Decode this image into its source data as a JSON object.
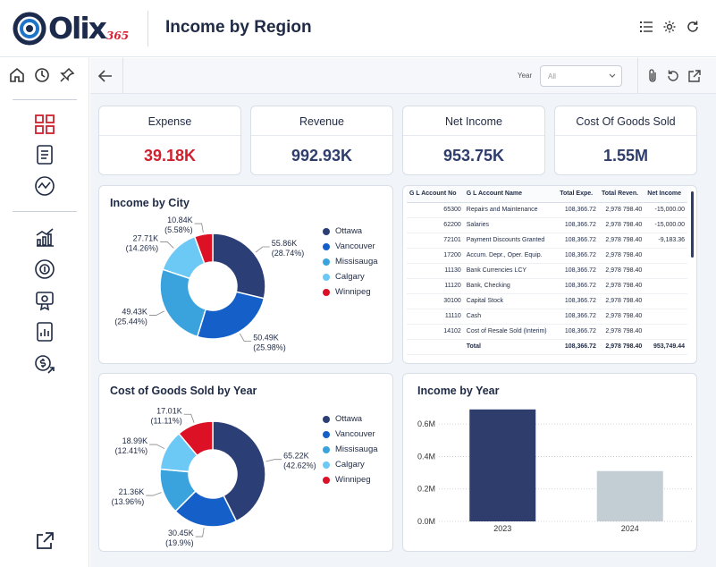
{
  "header": {
    "logo_text": "Olix",
    "logo_sub": "365",
    "title": "Income by Region"
  },
  "toolbar": {
    "year_label": "Year",
    "year_value": "All"
  },
  "kpis": [
    {
      "label": "Expense",
      "value": "39.18K",
      "color": "#d0202e"
    },
    {
      "label": "Revenue",
      "value": "992.93K",
      "color": "#2e3d6b"
    },
    {
      "label": "Net Income",
      "value": "953.75K",
      "color": "#2e3d6b"
    },
    {
      "label": "Cost Of Goods Sold",
      "value": "1.55M",
      "color": "#2e3d6b"
    }
  ],
  "legend": [
    {
      "name": "Ottawa",
      "color": "#2b3f76"
    },
    {
      "name": "Vancouver",
      "color": "#1560c8"
    },
    {
      "name": "Missisauga",
      "color": "#3aa3de"
    },
    {
      "name": "Calgary",
      "color": "#6cc8f5"
    },
    {
      "name": "Winnipeg",
      "color": "#dd1125"
    }
  ],
  "chart_data": [
    {
      "type": "pie",
      "title": "Income by City",
      "slices": [
        {
          "name": "Ottawa",
          "value": 55.86,
          "label": "55.86K",
          "pct": "(28.74%)"
        },
        {
          "name": "Vancouver",
          "value": 50.49,
          "label": "50.49K",
          "pct": "(25.98%)"
        },
        {
          "name": "Missisauga",
          "value": 49.43,
          "label": "49.43K",
          "pct": "(25.44%)"
        },
        {
          "name": "Calgary",
          "value": 27.71,
          "label": "27.71K",
          "pct": "(14.26%)"
        },
        {
          "name": "Winnipeg",
          "value": 10.84,
          "label": "10.84K",
          "pct": "(5.58%)"
        }
      ]
    },
    {
      "type": "pie",
      "title": "Cost of Goods Sold by Year",
      "slices": [
        {
          "name": "Ottawa",
          "value": 65.22,
          "label": "65.22K",
          "pct": "(42.62%)"
        },
        {
          "name": "Vancouver",
          "value": 30.45,
          "label": "30.45K",
          "pct": "(19.9%)"
        },
        {
          "name": "Missisauga",
          "value": 21.36,
          "label": "21.36K",
          "pct": "(13.96%)"
        },
        {
          "name": "Calgary",
          "value": 18.99,
          "label": "18.99K",
          "pct": "(12.41%)"
        },
        {
          "name": "Winnipeg",
          "value": 17.01,
          "label": "17.01K",
          "pct": "(11.11%)"
        }
      ]
    },
    {
      "type": "bar",
      "title": "Income by Year",
      "categories": [
        "2023",
        "2024"
      ],
      "values": [
        0.69,
        0.31
      ],
      "colors": [
        "#2e3d6b",
        "#c3cdd4"
      ],
      "ylim": [
        0,
        0.7
      ],
      "yticks": [
        "0.0M",
        "0.2M",
        "0.4M",
        "0.6M"
      ],
      "ytick_values": [
        0,
        0.2,
        0.4,
        0.6
      ]
    }
  ],
  "gl_table": {
    "columns": [
      "G L Account No",
      "G L Account Name",
      "Total Expe.",
      "Total Reven.",
      "Net Income"
    ],
    "rows": [
      [
        "65300",
        "Repairs and Maintenance",
        "108,366.72",
        "2,978 798.40",
        "-15,000.00"
      ],
      [
        "62200",
        "Salaries",
        "108,366.72",
        "2,978 798.40",
        "-15,000.00"
      ],
      [
        "72101",
        "Payment Discounts Granted",
        "108,366.72",
        "2,978 798.40",
        "-9,183.36"
      ],
      [
        "17200",
        "Accum. Depr., Oper. Equip.",
        "108,366.72",
        "2,978 798.40",
        ""
      ],
      [
        "11130",
        "Bank Currencies LCY",
        "108,366.72",
        "2,978 798.40",
        ""
      ],
      [
        "11120",
        "Bank, Checking",
        "108,366.72",
        "2,978 798.40",
        ""
      ],
      [
        "30100",
        "Capital Stock",
        "108,366.72",
        "2,978 798.40",
        ""
      ],
      [
        "11110",
        "Cash",
        "108,366.72",
        "2,978 798.40",
        ""
      ],
      [
        "14102",
        "Cost of Resale Sold (Interim)",
        "108,366.72",
        "2,978 798.40",
        ""
      ]
    ],
    "total": [
      "",
      "Total",
      "108,366.72",
      "2,978 798.40",
      "953,749.44"
    ]
  }
}
